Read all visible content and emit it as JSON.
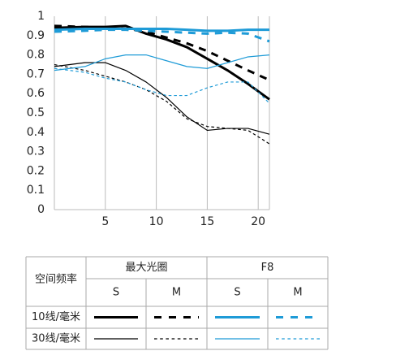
{
  "chart_data": {
    "type": "line",
    "x": [
      0,
      3,
      5,
      7,
      9,
      11,
      13,
      15,
      17,
      19,
      21.1
    ],
    "xlim": [
      0,
      21.1
    ],
    "xticks": [
      5,
      10,
      15,
      20
    ],
    "ylim": [
      0,
      1
    ],
    "yticks": [
      0,
      0.1,
      0.2,
      0.3,
      0.4,
      0.5,
      0.6,
      0.7,
      0.8,
      0.9,
      1
    ],
    "grid": "vertical",
    "series": [
      {
        "color": "#000000",
        "line_width": 3,
        "dashed": false,
        "values": [
          0.94,
          0.945,
          0.945,
          0.95,
          0.91,
          0.88,
          0.84,
          0.78,
          0.72,
          0.65,
          0.57
        ]
      },
      {
        "color": "#000000",
        "line_width": 3,
        "dashed": true,
        "values": [
          0.95,
          0.945,
          0.94,
          0.935,
          0.92,
          0.89,
          0.86,
          0.82,
          0.77,
          0.72,
          0.67
        ]
      },
      {
        "color": "#1e9bd7",
        "line_width": 3,
        "dashed": false,
        "values": [
          0.93,
          0.935,
          0.935,
          0.935,
          0.935,
          0.935,
          0.93,
          0.925,
          0.925,
          0.93,
          0.93
        ]
      },
      {
        "color": "#1e9bd7",
        "line_width": 3,
        "dashed": true,
        "values": [
          0.92,
          0.925,
          0.93,
          0.93,
          0.925,
          0.92,
          0.915,
          0.91,
          0.915,
          0.91,
          0.87
        ]
      },
      {
        "color": "#000000",
        "line_width": 1.2,
        "dashed": false,
        "values": [
          0.74,
          0.76,
          0.76,
          0.72,
          0.66,
          0.58,
          0.48,
          0.41,
          0.42,
          0.42,
          0.39
        ]
      },
      {
        "color": "#000000",
        "line_width": 1.2,
        "dashed": true,
        "values": [
          0.75,
          0.72,
          0.69,
          0.66,
          0.62,
          0.56,
          0.47,
          0.43,
          0.42,
          0.41,
          0.34
        ]
      },
      {
        "color": "#1e9bd7",
        "line_width": 1.2,
        "dashed": false,
        "values": [
          0.72,
          0.74,
          0.78,
          0.8,
          0.8,
          0.77,
          0.74,
          0.73,
          0.76,
          0.79,
          0.8
        ]
      },
      {
        "color": "#1e9bd7",
        "line_width": 1.2,
        "dashed": true,
        "values": [
          0.73,
          0.71,
          0.68,
          0.66,
          0.62,
          0.59,
          0.59,
          0.63,
          0.66,
          0.66,
          0.55
        ]
      }
    ],
    "legend_table": {
      "corner": "空间频率",
      "groups": [
        "最大光圈",
        "F8"
      ],
      "columns": [
        "S",
        "M",
        "S",
        "M"
      ],
      "rows": [
        "10线/毫米",
        "30线/毫米"
      ]
    }
  }
}
